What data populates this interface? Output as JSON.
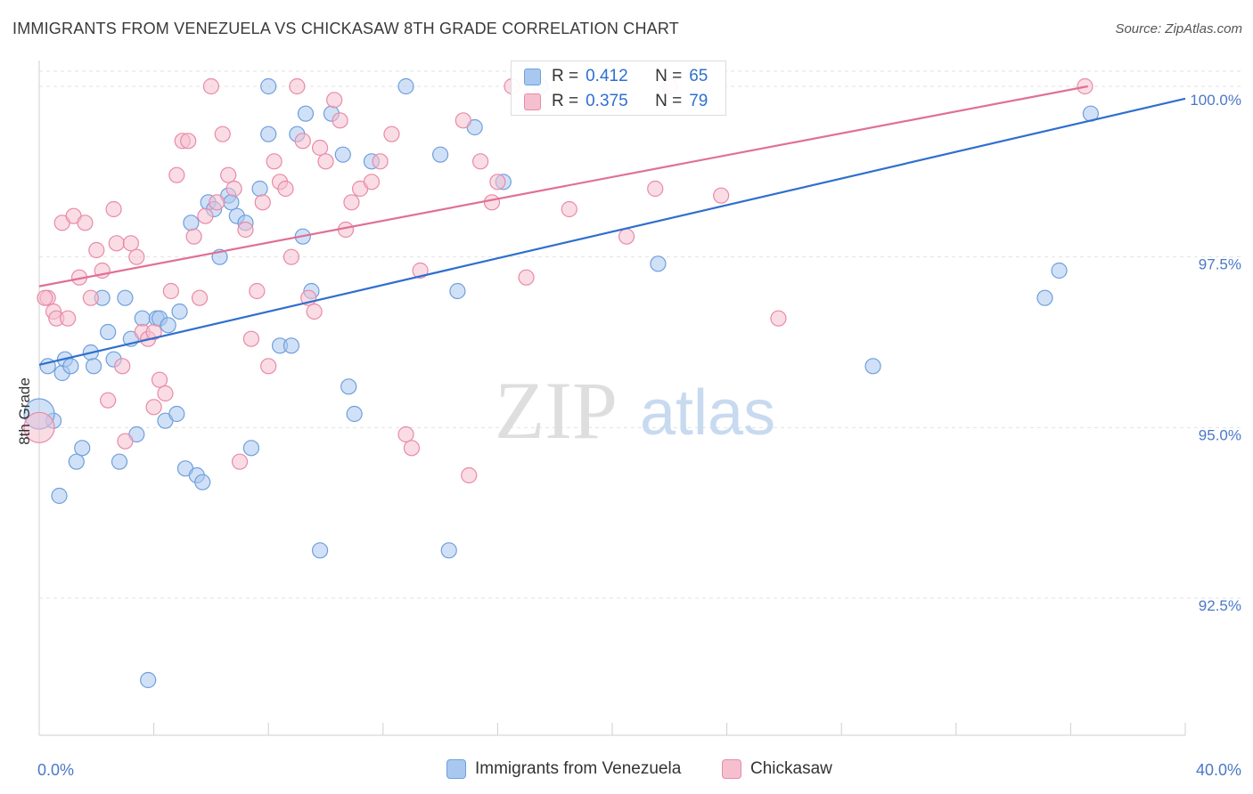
{
  "title": "IMMIGRANTS FROM VENEZUELA VS CHICKASAW 8TH GRADE CORRELATION CHART",
  "source": "Source: ZipAtlas.com",
  "watermark": {
    "zip": "ZIP",
    "atlas": "atlas"
  },
  "legend": {
    "series": [
      {
        "r_label": "R =",
        "r_value": "0.412",
        "n_label": "N =",
        "n_value": "65",
        "color": "#a9c8f0",
        "border": "#6f9fdc"
      },
      {
        "r_label": "R =",
        "r_value": "0.375",
        "n_label": "N =",
        "n_value": "79",
        "color": "#f6bfd0",
        "border": "#e98aa8"
      }
    ]
  },
  "bottom_legend": [
    {
      "label": "Immigrants from Venezuela",
      "color": "#a9c8f0",
      "border": "#6f9fdc"
    },
    {
      "label": "Chickasaw",
      "color": "#f6bfd0",
      "border": "#e98aa8"
    }
  ],
  "chart_data": {
    "type": "scatter",
    "title": "IMMIGRANTS FROM VENEZUELA VS CHICKASAW 8TH GRADE CORRELATION CHART",
    "xlabel": "",
    "ylabel": "8th Grade",
    "xlim": [
      0,
      40
    ],
    "ylim": [
      90.8,
      100.4
    ],
    "x_tick_labels": [
      "0.0%",
      "40.0%"
    ],
    "y_ticks": [
      92.5,
      95.0,
      97.5,
      100.0
    ],
    "y_tick_labels": [
      "92.5%",
      "95.0%",
      "97.5%",
      "100.0%"
    ],
    "grid": true,
    "series": [
      {
        "name": "Immigrants from Venezuela",
        "color": "#6f9fdc",
        "fill": "#a9c8f0",
        "trend_color": "#2f6fce",
        "trend": {
          "x0": 0,
          "y0": 95.92,
          "x1": 40,
          "y1": 99.82
        },
        "points": [
          [
            0.3,
            95.9
          ],
          [
            0.5,
            95.1
          ],
          [
            0.7,
            94.0
          ],
          [
            0.8,
            95.8
          ],
          [
            0.9,
            96.0
          ],
          [
            1.1,
            95.9
          ],
          [
            1.3,
            94.5
          ],
          [
            1.5,
            94.7
          ],
          [
            1.8,
            96.1
          ],
          [
            1.9,
            95.9
          ],
          [
            2.2,
            96.9
          ],
          [
            2.4,
            96.4
          ],
          [
            2.6,
            96.0
          ],
          [
            2.8,
            94.5
          ],
          [
            3.0,
            96.9
          ],
          [
            3.2,
            96.3
          ],
          [
            3.4,
            94.9
          ],
          [
            3.6,
            96.6
          ],
          [
            3.8,
            91.3
          ],
          [
            4.1,
            96.6
          ],
          [
            4.2,
            96.6
          ],
          [
            4.4,
            95.1
          ],
          [
            4.5,
            96.5
          ],
          [
            4.8,
            95.2
          ],
          [
            4.9,
            96.7
          ],
          [
            5.1,
            94.4
          ],
          [
            5.3,
            98.0
          ],
          [
            5.5,
            94.3
          ],
          [
            5.7,
            94.2
          ],
          [
            5.9,
            98.3
          ],
          [
            6.1,
            98.2
          ],
          [
            6.3,
            97.5
          ],
          [
            6.6,
            98.4
          ],
          [
            6.9,
            98.1
          ],
          [
            7.2,
            98.0
          ],
          [
            7.4,
            94.7
          ],
          [
            7.7,
            98.5
          ],
          [
            8.0,
            100.0
          ],
          [
            8.0,
            99.3
          ],
          [
            8.4,
            96.2
          ],
          [
            8.8,
            96.2
          ],
          [
            9.2,
            97.8
          ],
          [
            9.3,
            99.6
          ],
          [
            9.5,
            97.0
          ],
          [
            9.8,
            93.2
          ],
          [
            10.2,
            99.6
          ],
          [
            10.6,
            99.0
          ],
          [
            10.8,
            95.6
          ],
          [
            11.0,
            95.2
          ],
          [
            11.6,
            98.9
          ],
          [
            12.8,
            100.0
          ],
          [
            14.0,
            99.0
          ],
          [
            14.3,
            93.2
          ],
          [
            14.6,
            97.0
          ],
          [
            15.2,
            99.4
          ],
          [
            16.2,
            98.6
          ],
          [
            17.5,
            100.0
          ],
          [
            21.6,
            97.4
          ],
          [
            29.1,
            95.9
          ],
          [
            35.1,
            96.9
          ],
          [
            35.6,
            97.3
          ],
          [
            36.7,
            99.6
          ],
          [
            0.0,
            95.2
          ],
          [
            9.0,
            99.3
          ],
          [
            6.7,
            98.3
          ]
        ]
      },
      {
        "name": "Chickasaw",
        "color": "#e98aa8",
        "fill": "#f6bfd0",
        "trend_color": "#e07095",
        "trend": {
          "x0": 0,
          "y0": 97.07,
          "x1": 36.6,
          "y1": 100.0
        },
        "points": [
          [
            0.0,
            95.0
          ],
          [
            0.3,
            96.9
          ],
          [
            0.5,
            96.7
          ],
          [
            0.6,
            96.6
          ],
          [
            0.8,
            98.0
          ],
          [
            1.0,
            96.6
          ],
          [
            1.2,
            98.1
          ],
          [
            1.4,
            97.2
          ],
          [
            1.6,
            98.0
          ],
          [
            1.8,
            96.9
          ],
          [
            2.0,
            97.6
          ],
          [
            2.2,
            97.3
          ],
          [
            2.4,
            95.4
          ],
          [
            2.6,
            98.2
          ],
          [
            2.7,
            97.7
          ],
          [
            2.9,
            95.9
          ],
          [
            3.0,
            94.8
          ],
          [
            3.2,
            97.7
          ],
          [
            3.4,
            97.5
          ],
          [
            3.6,
            96.4
          ],
          [
            3.8,
            96.3
          ],
          [
            4.0,
            95.3
          ],
          [
            4.2,
            95.7
          ],
          [
            4.4,
            95.5
          ],
          [
            4.6,
            97.0
          ],
          [
            4.8,
            98.7
          ],
          [
            5.0,
            99.2
          ],
          [
            5.2,
            99.2
          ],
          [
            5.4,
            97.8
          ],
          [
            5.6,
            96.9
          ],
          [
            5.8,
            98.1
          ],
          [
            6.0,
            100.0
          ],
          [
            6.2,
            98.3
          ],
          [
            6.4,
            99.3
          ],
          [
            6.6,
            98.7
          ],
          [
            6.8,
            98.5
          ],
          [
            7.0,
            94.5
          ],
          [
            7.2,
            97.9
          ],
          [
            7.4,
            96.3
          ],
          [
            7.6,
            97.0
          ],
          [
            7.8,
            98.3
          ],
          [
            8.0,
            95.9
          ],
          [
            8.2,
            98.9
          ],
          [
            8.4,
            98.6
          ],
          [
            8.6,
            98.5
          ],
          [
            8.8,
            97.5
          ],
          [
            9.0,
            100.0
          ],
          [
            9.2,
            99.2
          ],
          [
            9.4,
            96.9
          ],
          [
            9.6,
            96.7
          ],
          [
            9.8,
            99.1
          ],
          [
            10.0,
            98.9
          ],
          [
            10.3,
            99.8
          ],
          [
            10.5,
            99.5
          ],
          [
            10.7,
            97.9
          ],
          [
            10.9,
            98.3
          ],
          [
            11.2,
            98.5
          ],
          [
            11.6,
            98.6
          ],
          [
            11.9,
            98.9
          ],
          [
            12.3,
            99.3
          ],
          [
            12.8,
            94.9
          ],
          [
            13.0,
            94.7
          ],
          [
            13.3,
            97.3
          ],
          [
            14.8,
            99.5
          ],
          [
            15.0,
            94.3
          ],
          [
            15.4,
            98.9
          ],
          [
            15.8,
            98.3
          ],
          [
            16.0,
            98.6
          ],
          [
            16.5,
            100.0
          ],
          [
            17.0,
            97.2
          ],
          [
            18.5,
            98.2
          ],
          [
            20.5,
            97.8
          ],
          [
            21.5,
            98.5
          ],
          [
            22.0,
            100.0
          ],
          [
            23.8,
            98.4
          ],
          [
            25.8,
            96.6
          ],
          [
            36.5,
            100.0
          ],
          [
            0.2,
            96.9
          ],
          [
            4.0,
            96.4
          ]
        ]
      }
    ]
  }
}
